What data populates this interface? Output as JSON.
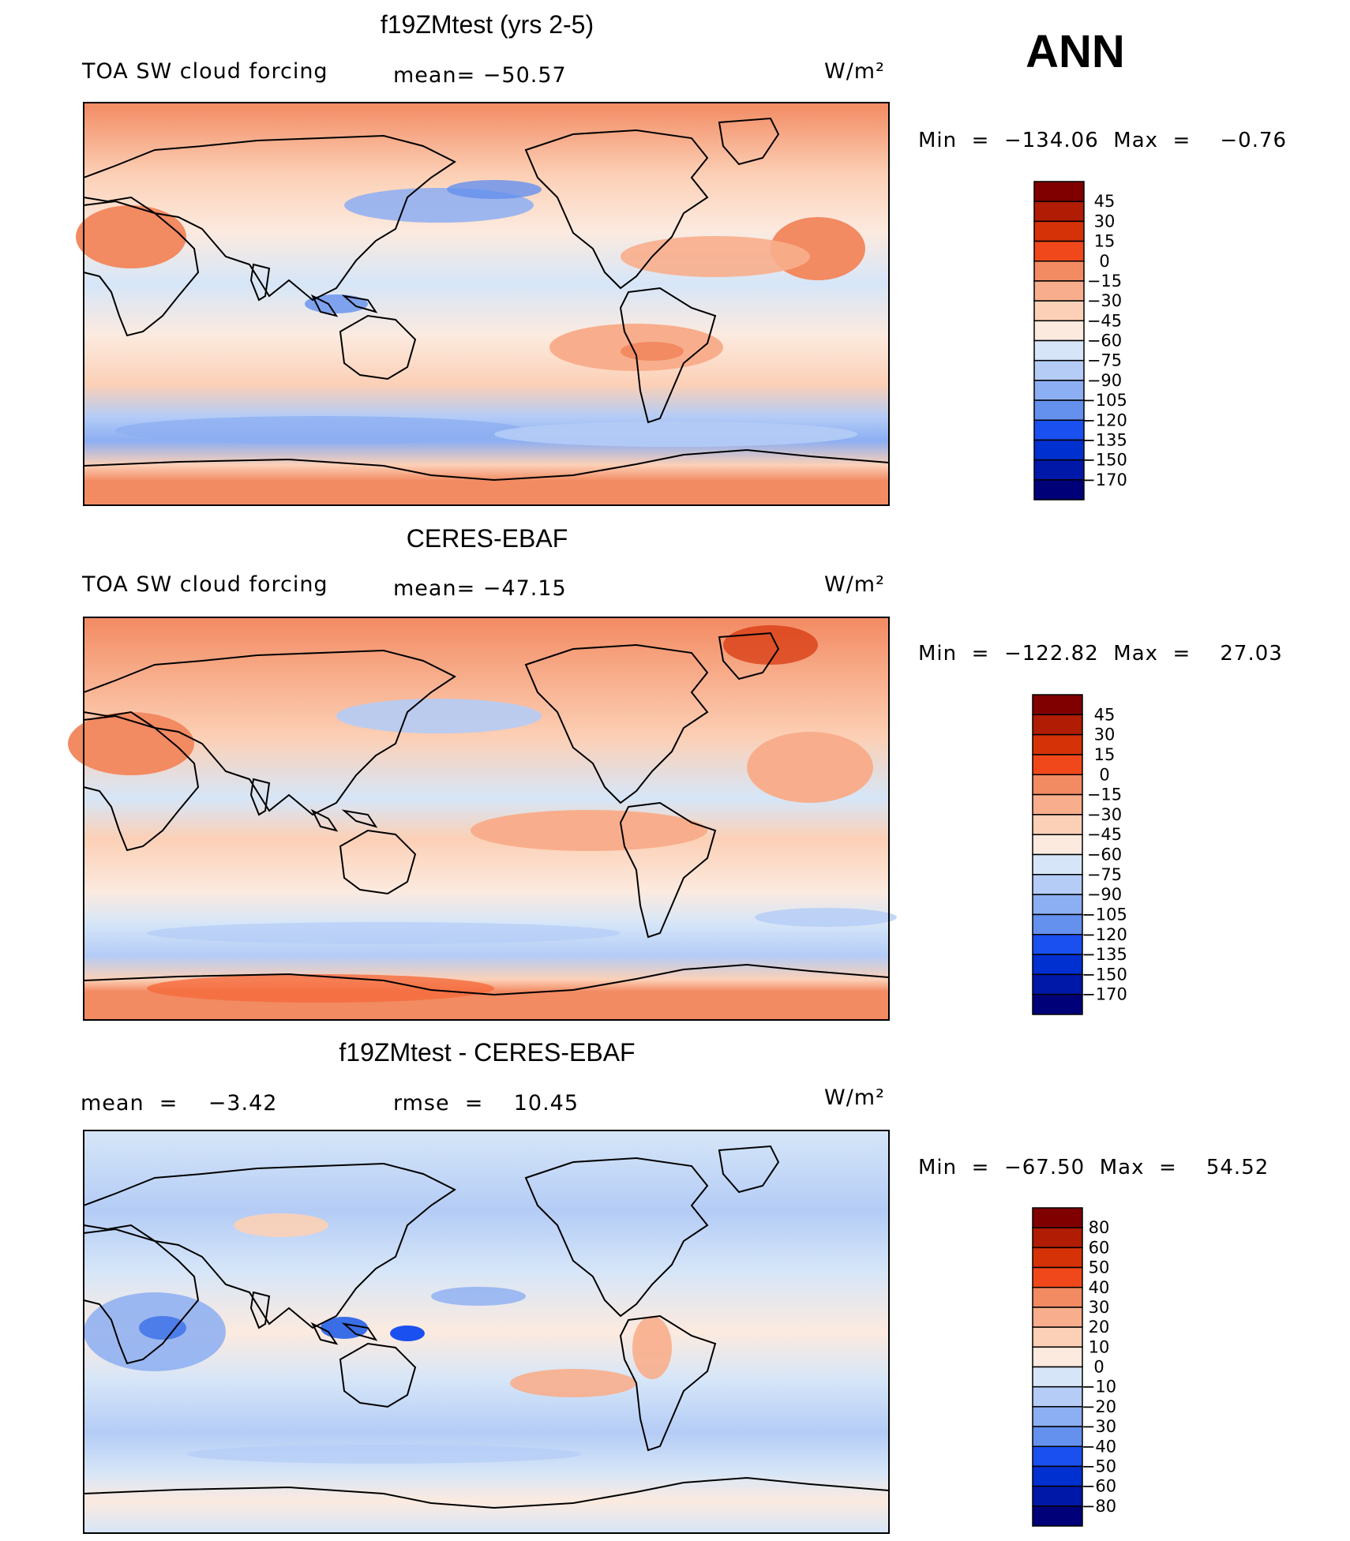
{
  "season": "ANN",
  "colors": {
    "field": [
      "#000078",
      "#0018a8",
      "#0030d0",
      "#1a50f0",
      "#3a6ee6",
      "#6490ee",
      "#8caef2",
      "#b4ccf6",
      "#d6e6f8",
      "#fceadf",
      "#fcd0b6",
      "#f8ae8c",
      "#f28a62",
      "#f56a3c",
      "#f0481a",
      "#d63208",
      "#b01c04",
      "#800000"
    ],
    "diff": [
      "#000078",
      "#0018a8",
      "#0030d0",
      "#1a50f0",
      "#3a6ee6",
      "#6490ee",
      "#8caef2",
      "#b4ccf6",
      "#d6e6f8",
      "#fceadf",
      "#fcd0b6",
      "#f8ae8c",
      "#f28a62",
      "#f56a3c",
      "#f0481a",
      "#d63208",
      "#b01c04",
      "#800000"
    ]
  },
  "chart_data": [
    {
      "type": "heatmap",
      "title": "f19ZMtest (yrs 2-5)",
      "left_label": "TOA SW cloud forcing",
      "mid_label": "mean=  −50.57",
      "units": "W/m²",
      "stats": "Min  =  −134.06  Max  =    −0.76",
      "mean": -50.57,
      "min": -134.06,
      "max": -0.76,
      "colorbar_levels": [
        "45",
        "30",
        "15",
        "0",
        "−15",
        "−30",
        "−45",
        "−60",
        "−75",
        "−90",
        "−105",
        "−120",
        "−135",
        "−150",
        "−170"
      ]
    },
    {
      "type": "heatmap",
      "title": "CERES-EBAF",
      "left_label": "TOA SW cloud forcing",
      "mid_label": "mean=  −47.15",
      "units": "W/m²",
      "stats": "Min  =  −122.82  Max  =    27.03",
      "mean": -47.15,
      "min": -122.82,
      "max": 27.03,
      "colorbar_levels": [
        "45",
        "30",
        "15",
        "0",
        "−15",
        "−30",
        "−45",
        "−60",
        "−75",
        "−90",
        "−105",
        "−120",
        "−135",
        "−150",
        "−170"
      ]
    },
    {
      "type": "heatmap",
      "title": "f19ZMtest - CERES-EBAF",
      "left_label": "mean  =    −3.42",
      "mid_label": "rmse  =    10.45",
      "units": "W/m²",
      "stats": "Min  =  −67.50  Max  =    54.52",
      "mean": -3.42,
      "rmse": 10.45,
      "min": -67.5,
      "max": 54.52,
      "colorbar_levels": [
        "80",
        "60",
        "50",
        "40",
        "30",
        "20",
        "10",
        "0",
        "−10",
        "−20",
        "−30",
        "−40",
        "−50",
        "−60",
        "−80"
      ]
    }
  ]
}
